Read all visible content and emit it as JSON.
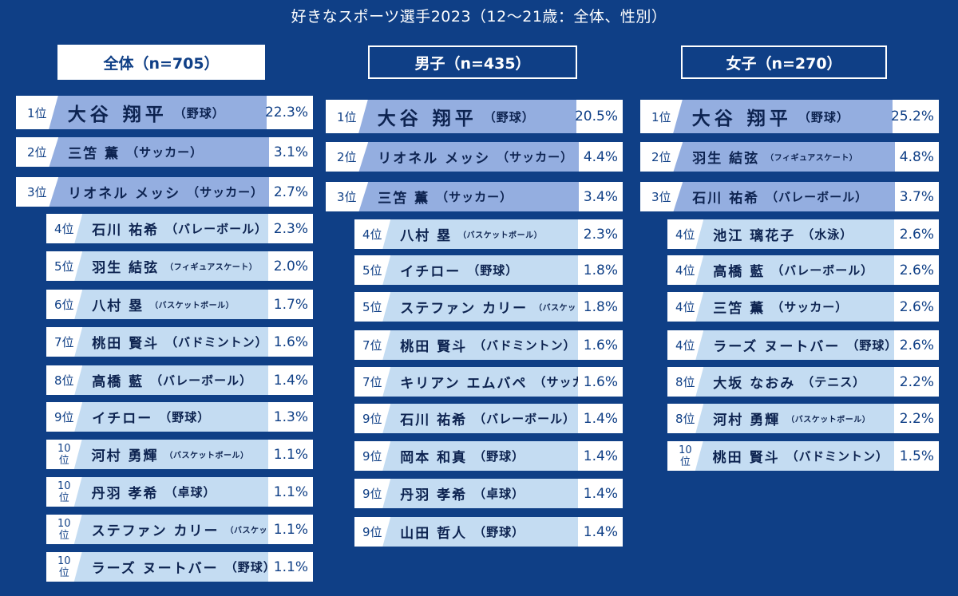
{
  "title": "好きなスポーツ選手2023（12〜21歳：全体、性別）",
  "colors": {
    "background": "#0f3f86",
    "top_bar": "#94aee0",
    "other_bar": "#c4dcf2"
  },
  "groups": [
    {
      "header": "全体（n=705）",
      "entries": [
        {
          "rank": "1位",
          "name": "大谷 翔平",
          "sport": "（野球）",
          "pct": "22.3%"
        },
        {
          "rank": "2位",
          "name": "三笘 薫",
          "sport": "（サッカー）",
          "pct": "3.1%"
        },
        {
          "rank": "3位",
          "name": "リオネル メッシ",
          "sport": "（サッカー）",
          "pct": "2.7%"
        },
        {
          "rank": "4位",
          "name": "石川 祐希",
          "sport": "（バレーボール）",
          "pct": "2.3%"
        },
        {
          "rank": "5位",
          "name": "羽生 結弦",
          "sport": "（フィギュアスケート）",
          "pct": "2.0%"
        },
        {
          "rank": "6位",
          "name": "八村 塁",
          "sport": "（バスケットボール）",
          "pct": "1.7%"
        },
        {
          "rank": "7位",
          "name": "桃田 賢斗",
          "sport": "（バドミントン）",
          "pct": "1.6%"
        },
        {
          "rank": "8位",
          "name": "高橋 藍",
          "sport": "（バレーボール）",
          "pct": "1.4%"
        },
        {
          "rank": "9位",
          "name": "イチロー",
          "sport": "（野球）",
          "pct": "1.3%"
        },
        {
          "rank": "10位",
          "name": "河村 勇輝",
          "sport": "（バスケットボール）",
          "pct": "1.1%"
        },
        {
          "rank": "10位",
          "name": "丹羽 孝希",
          "sport": "（卓球）",
          "pct": "1.1%"
        },
        {
          "rank": "10位",
          "name": "ステファン カリー",
          "sport": "（バスケットボール）",
          "pct": "1.1%"
        },
        {
          "rank": "10位",
          "name": "ラーズ ヌートバー",
          "sport": "（野球）",
          "pct": "1.1%"
        }
      ]
    },
    {
      "header": "男子（n=435）",
      "entries": [
        {
          "rank": "1位",
          "name": "大谷 翔平",
          "sport": "（野球）",
          "pct": "20.5%"
        },
        {
          "rank": "2位",
          "name": "リオネル メッシ",
          "sport": "（サッカー）",
          "pct": "4.4%"
        },
        {
          "rank": "3位",
          "name": "三笘 薫",
          "sport": "（サッカー）",
          "pct": "3.4%"
        },
        {
          "rank": "4位",
          "name": "八村 塁",
          "sport": "（バスケットボール）",
          "pct": "2.3%"
        },
        {
          "rank": "5位",
          "name": "イチロー",
          "sport": "（野球）",
          "pct": "1.8%"
        },
        {
          "rank": "5位",
          "name": "ステファン カリー",
          "sport": "（バスケットボール）",
          "pct": "1.8%"
        },
        {
          "rank": "7位",
          "name": "桃田 賢斗",
          "sport": "（バドミントン）",
          "pct": "1.6%"
        },
        {
          "rank": "7位",
          "name": "キリアン エムバペ",
          "sport": "（サッカー）",
          "pct": "1.6%"
        },
        {
          "rank": "9位",
          "name": "石川 祐希",
          "sport": "（バレーボール）",
          "pct": "1.4%"
        },
        {
          "rank": "9位",
          "name": "岡本 和真",
          "sport": "（野球）",
          "pct": "1.4%"
        },
        {
          "rank": "9位",
          "name": "丹羽 孝希",
          "sport": "（卓球）",
          "pct": "1.4%"
        },
        {
          "rank": "9位",
          "name": "山田 哲人",
          "sport": "（野球）",
          "pct": "1.4%"
        }
      ]
    },
    {
      "header": "女子（n=270）",
      "entries": [
        {
          "rank": "1位",
          "name": "大谷 翔平",
          "sport": "（野球）",
          "pct": "25.2%"
        },
        {
          "rank": "2位",
          "name": "羽生 結弦",
          "sport": "（フィギュアスケート）",
          "pct": "4.8%"
        },
        {
          "rank": "3位",
          "name": "石川 祐希",
          "sport": "（バレーボール）",
          "pct": "3.7%"
        },
        {
          "rank": "4位",
          "name": "池江 璃花子",
          "sport": "（水泳）",
          "pct": "2.6%"
        },
        {
          "rank": "4位",
          "name": "高橋 藍",
          "sport": "（バレーボール）",
          "pct": "2.6%"
        },
        {
          "rank": "4位",
          "name": "三笘 薫",
          "sport": "（サッカー）",
          "pct": "2.6%"
        },
        {
          "rank": "4位",
          "name": "ラーズ ヌートバー",
          "sport": "（野球）",
          "pct": "2.6%"
        },
        {
          "rank": "8位",
          "name": "大坂 なおみ",
          "sport": "（テニス）",
          "pct": "2.2%"
        },
        {
          "rank": "8位",
          "name": "河村 勇輝",
          "sport": "（バスケットボール）",
          "pct": "2.2%"
        },
        {
          "rank": "10位",
          "name": "桃田 賢斗",
          "sport": "（バドミントン）",
          "pct": "1.5%"
        }
      ]
    }
  ],
  "chart_data": [
    {
      "type": "table",
      "title": "全体（n=705）",
      "unit": "%",
      "categories": [
        "大谷 翔平",
        "三笘 薫",
        "リオネル メッシ",
        "石川 祐希",
        "羽生 結弦",
        "八村 塁",
        "桃田 賢斗",
        "高橋 藍",
        "イチロー",
        "河村 勇輝",
        "丹羽 孝希",
        "ステファン カリー",
        "ラーズ ヌートバー"
      ],
      "values": [
        22.3,
        3.1,
        2.7,
        2.3,
        2.0,
        1.7,
        1.6,
        1.4,
        1.3,
        1.1,
        1.1,
        1.1,
        1.1
      ]
    },
    {
      "type": "table",
      "title": "男子（n=435）",
      "unit": "%",
      "categories": [
        "大谷 翔平",
        "リオネル メッシ",
        "三笘 薫",
        "八村 塁",
        "イチロー",
        "ステファン カリー",
        "桃田 賢斗",
        "キリアン エムバペ",
        "石川 祐希",
        "岡本 和真",
        "丹羽 孝希",
        "山田 哲人"
      ],
      "values": [
        20.5,
        4.4,
        3.4,
        2.3,
        1.8,
        1.8,
        1.6,
        1.6,
        1.4,
        1.4,
        1.4,
        1.4
      ]
    },
    {
      "type": "table",
      "title": "女子（n=270）",
      "unit": "%",
      "categories": [
        "大谷 翔平",
        "羽生 結弦",
        "石川 祐希",
        "池江 璃花子",
        "高橋 藍",
        "三笘 薫",
        "ラーズ ヌートバー",
        "大坂 なおみ",
        "河村 勇輝",
        "桃田 賢斗"
      ],
      "values": [
        25.2,
        4.8,
        3.7,
        2.6,
        2.6,
        2.6,
        2.6,
        2.2,
        2.2,
        1.5
      ]
    }
  ]
}
